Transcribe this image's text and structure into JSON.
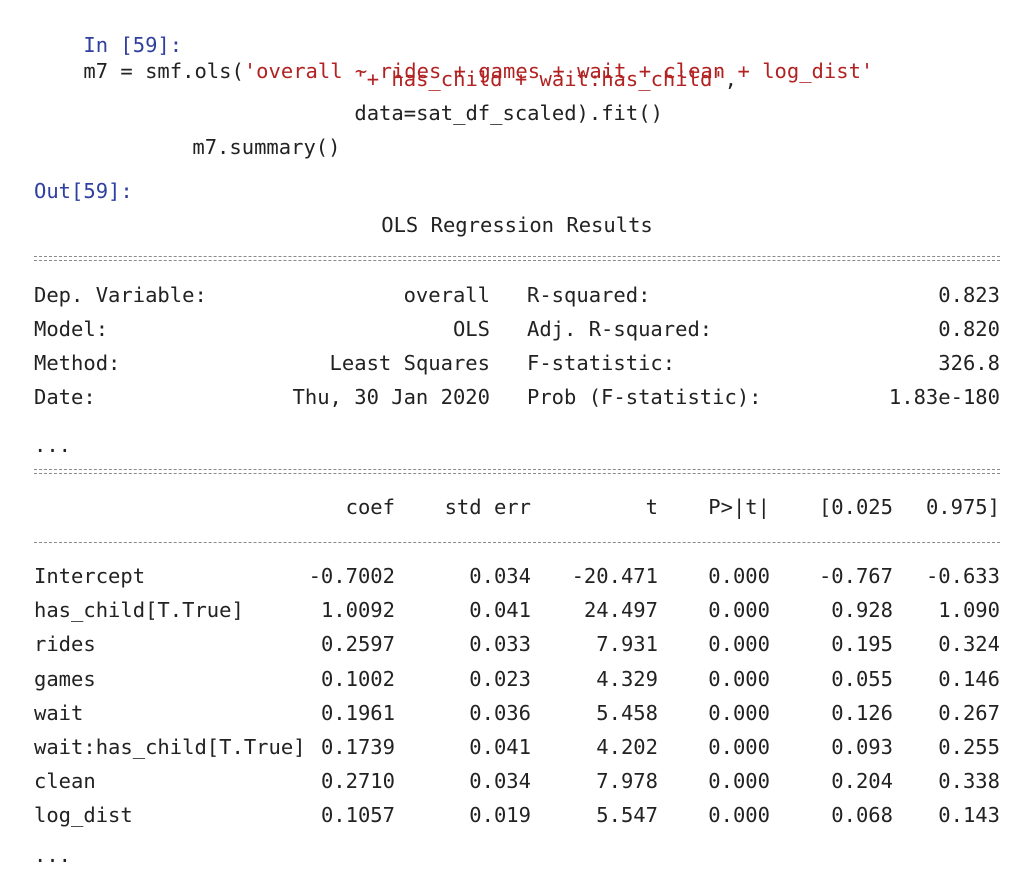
{
  "input": {
    "prompt": "In [59]:",
    "code_line_1_pre": "m7 = smf.ols(",
    "code_line_1_str": "'overall ~ rides + games + wait + clean + log_dist'",
    "code_line_2_str": "'+ has_child + wait:has_child'",
    "code_line_2_post": ",",
    "code_line_3": "data=sat_df_scaled).fit()",
    "code_line_4": "m7.summary()"
  },
  "output": {
    "prompt": "Out[59]:",
    "title": "OLS Regression Results",
    "ellipsis_1": "...",
    "ellipsis_2": "...",
    "summary": [
      {
        "label": "Dep. Variable:",
        "value": "overall",
        "stat_label": "R-squared:",
        "stat_value": "0.823"
      },
      {
        "label": "Model:",
        "value": "OLS",
        "stat_label": "Adj. R-squared:",
        "stat_value": "0.820"
      },
      {
        "label": "Method:",
        "value": "Least Squares",
        "stat_label": "F-statistic:",
        "stat_value": "326.8"
      },
      {
        "label": "Date:",
        "value": "Thu, 30 Jan 2020",
        "stat_label": "Prob (F-statistic):",
        "stat_value": "1.83e-180"
      }
    ],
    "coef_headers": [
      "coef",
      "std err",
      "t",
      "P>|t|",
      "[0.025",
      "0.975]"
    ],
    "coef_rows": [
      {
        "name": "Intercept",
        "coef": "-0.7002",
        "std_err": "0.034",
        "t": "-20.471",
        "p": "0.000",
        "lo": "-0.767",
        "hi": "-0.633"
      },
      {
        "name": "has_child[T.True]",
        "coef": "1.0092",
        "std_err": "0.041",
        "t": "24.497",
        "p": "0.000",
        "lo": "0.928",
        "hi": "1.090"
      },
      {
        "name": "rides",
        "coef": "0.2597",
        "std_err": "0.033",
        "t": "7.931",
        "p": "0.000",
        "lo": "0.195",
        "hi": "0.324"
      },
      {
        "name": "games",
        "coef": "0.1002",
        "std_err": "0.023",
        "t": "4.329",
        "p": "0.000",
        "lo": "0.055",
        "hi": "0.146"
      },
      {
        "name": "wait",
        "coef": "0.1961",
        "std_err": "0.036",
        "t": "5.458",
        "p": "0.000",
        "lo": "0.126",
        "hi": "0.267"
      },
      {
        "name": "wait:has_child[T.True]",
        "coef": "0.1739",
        "std_err": "0.041",
        "t": "4.202",
        "p": "0.000",
        "lo": "0.093",
        "hi": "0.255"
      },
      {
        "name": "clean",
        "coef": "0.2710",
        "std_err": "0.034",
        "t": "7.978",
        "p": "0.000",
        "lo": "0.204",
        "hi": "0.338"
      },
      {
        "name": "log_dist",
        "coef": "0.1057",
        "std_err": "0.019",
        "t": "5.547",
        "p": "0.000",
        "lo": "0.068",
        "hi": "0.143"
      }
    ]
  },
  "colors": {
    "in_prompt": "#2f3fa0",
    "out_prompt": "#a03030",
    "string": "#b22222",
    "text": "#222222"
  }
}
